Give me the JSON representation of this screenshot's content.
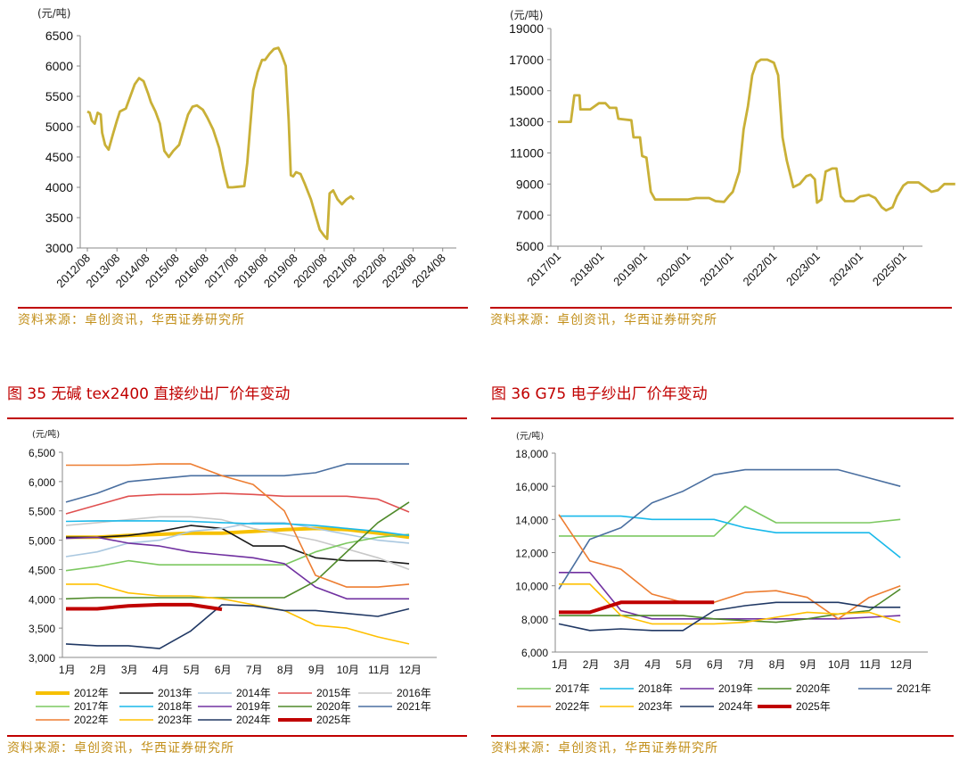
{
  "source_text": "资料来源：卓创资讯，华西证券研究所",
  "fig35_title": "图 35 无碱 tex2400 直接纱出厂价年变动",
  "fig36_title": "图 36 G75 电子纱出厂价年变动",
  "chart_data": [
    {
      "type": "line",
      "unit": "(元/吨)",
      "ylim": [
        3000,
        6500
      ],
      "yticks": [
        "3000",
        "3500",
        "4000",
        "4500",
        "5000",
        "5500",
        "6000",
        "6500"
      ],
      "xlabels": [
        "2012/08",
        "2013/08",
        "2014/08",
        "2015/08",
        "2016/08",
        "2017/08",
        "2018/08",
        "2019/08",
        "2020/08",
        "2021/08",
        "2022/08",
        "2023/08",
        "2024/08"
      ],
      "color": "#c9b037",
      "series": [
        {
          "points": [
            [
              0,
              5250
            ],
            [
              0.08,
              5230
            ],
            [
              0.15,
              5100
            ],
            [
              0.25,
              5050
            ],
            [
              0.35,
              5230
            ],
            [
              0.45,
              5200
            ],
            [
              0.5,
              4900
            ],
            [
              0.6,
              4700
            ],
            [
              0.72,
              4620
            ],
            [
              0.85,
              4850
            ],
            [
              1.0,
              5100
            ],
            [
              1.1,
              5250
            ],
            [
              1.3,
              5300
            ],
            [
              1.45,
              5500
            ],
            [
              1.6,
              5700
            ],
            [
              1.75,
              5800
            ],
            [
              1.9,
              5750
            ],
            [
              2.05,
              5550
            ],
            [
              2.15,
              5400
            ],
            [
              2.3,
              5250
            ],
            [
              2.45,
              5050
            ],
            [
              2.6,
              4600
            ],
            [
              2.75,
              4500
            ],
            [
              2.9,
              4600
            ],
            [
              3.1,
              4700
            ],
            [
              3.25,
              4950
            ],
            [
              3.4,
              5200
            ],
            [
              3.55,
              5330
            ],
            [
              3.7,
              5350
            ],
            [
              3.9,
              5280
            ],
            [
              4.05,
              5150
            ],
            [
              4.25,
              4950
            ],
            [
              4.45,
              4650
            ],
            [
              4.6,
              4300
            ],
            [
              4.75,
              4000
            ],
            [
              4.9,
              4000
            ],
            [
              5.1,
              4010
            ],
            [
              5.3,
              4020
            ],
            [
              5.4,
              4400
            ],
            [
              5.5,
              5000
            ],
            [
              5.6,
              5600
            ],
            [
              5.75,
              5900
            ],
            [
              5.9,
              6100
            ],
            [
              6.0,
              6100
            ],
            [
              6.15,
              6200
            ],
            [
              6.3,
              6280
            ],
            [
              6.45,
              6300
            ],
            [
              6.55,
              6200
            ],
            [
              6.7,
              6000
            ],
            [
              6.8,
              5100
            ],
            [
              6.87,
              4200
            ],
            [
              6.95,
              4180
            ],
            [
              7.05,
              4250
            ],
            [
              7.2,
              4220
            ],
            [
              7.35,
              4050
            ],
            [
              7.55,
              3800
            ],
            [
              7.7,
              3550
            ],
            [
              7.85,
              3300
            ],
            [
              8.0,
              3200
            ],
            [
              8.1,
              3150
            ],
            [
              8.18,
              3900
            ],
            [
              8.3,
              3950
            ],
            [
              8.45,
              3800
            ],
            [
              8.6,
              3720
            ],
            [
              8.75,
              3800
            ],
            [
              8.9,
              3850
            ],
            [
              9.0,
              3800
            ]
          ]
        }
      ]
    },
    {
      "type": "line",
      "unit": "(元/吨)",
      "ylim": [
        5000,
        19000
      ],
      "yticks": [
        "5000",
        "7000",
        "9000",
        "11000",
        "13000",
        "15000",
        "17000",
        "19000"
      ],
      "xlabels": [
        "2017/01",
        "2018/01",
        "2019/01",
        "2020/01",
        "2021/01",
        "2022/01",
        "2023/01",
        "2024/01",
        "2025/01"
      ],
      "color": "#c9b037",
      "series": [
        {
          "points": [
            [
              0,
              13000
            ],
            [
              0.3,
              13000
            ],
            [
              0.38,
              14700
            ],
            [
              0.5,
              14700
            ],
            [
              0.52,
              13800
            ],
            [
              0.75,
              13800
            ],
            [
              0.95,
              14200
            ],
            [
              1.1,
              14200
            ],
            [
              1.2,
              13900
            ],
            [
              1.35,
              13900
            ],
            [
              1.4,
              13200
            ],
            [
              1.7,
              13100
            ],
            [
              1.75,
              12000
            ],
            [
              1.9,
              12000
            ],
            [
              1.95,
              10800
            ],
            [
              2.05,
              10700
            ],
            [
              2.15,
              8500
            ],
            [
              2.25,
              8000
            ],
            [
              2.6,
              8000
            ],
            [
              3.0,
              8000
            ],
            [
              3.2,
              8100
            ],
            [
              3.5,
              8100
            ],
            [
              3.65,
              7900
            ],
            [
              3.85,
              7850
            ],
            [
              3.95,
              8200
            ],
            [
              4.05,
              8500
            ],
            [
              4.2,
              9800
            ],
            [
              4.3,
              12500
            ],
            [
              4.4,
              14000
            ],
            [
              4.5,
              16000
            ],
            [
              4.6,
              16800
            ],
            [
              4.7,
              17000
            ],
            [
              4.85,
              17000
            ],
            [
              5.0,
              16800
            ],
            [
              5.1,
              16000
            ],
            [
              5.2,
              12000
            ],
            [
              5.3,
              10500
            ],
            [
              5.45,
              8800
            ],
            [
              5.6,
              9000
            ],
            [
              5.75,
              9500
            ],
            [
              5.85,
              9600
            ],
            [
              5.95,
              9300
            ],
            [
              6.0,
              7800
            ],
            [
              6.1,
              8000
            ],
            [
              6.2,
              9800
            ],
            [
              6.35,
              10000
            ],
            [
              6.45,
              10000
            ],
            [
              6.55,
              8200
            ],
            [
              6.65,
              7900
            ],
            [
              6.85,
              7900
            ],
            [
              7.0,
              8200
            ],
            [
              7.2,
              8300
            ],
            [
              7.35,
              8100
            ],
            [
              7.5,
              7500
            ],
            [
              7.6,
              7300
            ],
            [
              7.75,
              7500
            ],
            [
              7.85,
              8200
            ],
            [
              8.0,
              8900
            ],
            [
              8.1,
              9100
            ],
            [
              8.35,
              9100
            ],
            [
              8.5,
              8800
            ],
            [
              8.65,
              8500
            ],
            [
              8.8,
              8600
            ],
            [
              8.95,
              9000
            ],
            [
              9.2,
              9000
            ]
          ]
        }
      ]
    },
    {
      "type": "line",
      "unit": "(元/吨)",
      "ylim": [
        3000,
        6500
      ],
      "yticks": [
        "3,000",
        "3,500",
        "4,000",
        "4,500",
        "5,000",
        "5,500",
        "6,000",
        "6,500"
      ],
      "xlabels": [
        "1月",
        "2月",
        "3月",
        "4月",
        "5月",
        "6月",
        "7月",
        "8月",
        "9月",
        "10月",
        "11月",
        "12月"
      ],
      "series": [
        {
          "name": "2012年",
          "color": "#f6c000",
          "width": 4,
          "values": [
            5050,
            5050,
            5080,
            5100,
            5120,
            5120,
            5150,
            5180,
            5200,
            5180,
            5120,
            5050
          ]
        },
        {
          "name": "2013年",
          "color": "#1a1a1a",
          "width": 1.6,
          "values": [
            5050,
            5050,
            5080,
            5150,
            5250,
            5200,
            4900,
            4900,
            4700,
            4650,
            4650,
            4600
          ]
        },
        {
          "name": "2014年",
          "color": "#aac8e0",
          "width": 1.6,
          "values": [
            4720,
            4800,
            4950,
            5000,
            5150,
            5200,
            5300,
            5300,
            5200,
            5100,
            5000,
            4950
          ]
        },
        {
          "name": "2015年",
          "color": "#e05050",
          "width": 1.6,
          "values": [
            5450,
            5600,
            5750,
            5780,
            5780,
            5800,
            5780,
            5750,
            5750,
            5750,
            5700,
            5480
          ]
        },
        {
          "name": "2016年",
          "color": "#c8c8c8",
          "width": 1.6,
          "values": [
            5250,
            5300,
            5350,
            5400,
            5400,
            5350,
            5200,
            5100,
            5000,
            4850,
            4700,
            4500
          ]
        },
        {
          "name": "2017年",
          "color": "#7cc860",
          "width": 1.6,
          "values": [
            4480,
            4550,
            4650,
            4580,
            4580,
            4580,
            4580,
            4580,
            4800,
            4950,
            5050,
            5100
          ]
        },
        {
          "name": "2018年",
          "color": "#19b9ea",
          "width": 1.6,
          "values": [
            5320,
            5330,
            5330,
            5330,
            5320,
            5300,
            5280,
            5280,
            5250,
            5200,
            5150,
            5080
          ]
        },
        {
          "name": "2019年",
          "color": "#7030a0",
          "width": 1.6,
          "values": [
            5030,
            5050,
            4950,
            4900,
            4800,
            4750,
            4700,
            4600,
            4200,
            4000,
            4000,
            4000
          ]
        },
        {
          "name": "2020年",
          "color": "#4f8a2a",
          "width": 1.6,
          "values": [
            4000,
            4020,
            4020,
            4020,
            4020,
            4020,
            4020,
            4020,
            4300,
            4800,
            5300,
            5650
          ]
        },
        {
          "name": "2021年",
          "color": "#4a6fa0",
          "width": 1.6,
          "values": [
            5650,
            5800,
            6000,
            6050,
            6100,
            6100,
            6100,
            6100,
            6150,
            6300,
            6300,
            6300
          ]
        },
        {
          "name": "2022年",
          "color": "#ed7d31",
          "width": 1.6,
          "values": [
            6280,
            6280,
            6280,
            6300,
            6300,
            6100,
            5950,
            5500,
            4400,
            4200,
            4200,
            4250
          ]
        },
        {
          "name": "2023年",
          "color": "#ffc000",
          "width": 1.6,
          "values": [
            4250,
            4250,
            4100,
            4050,
            4050,
            4000,
            3900,
            3800,
            3550,
            3500,
            3350,
            3230
          ]
        },
        {
          "name": "2024年",
          "color": "#203864",
          "width": 1.6,
          "values": [
            3230,
            3200,
            3200,
            3150,
            3450,
            3900,
            3880,
            3800,
            3800,
            3750,
            3700,
            3830
          ]
        },
        {
          "name": "2025年",
          "color": "#c00000",
          "width": 4,
          "values": [
            3830,
            3830,
            3880,
            3900,
            3900,
            3820
          ]
        }
      ]
    },
    {
      "type": "line",
      "unit": "(元/吨)",
      "ylim": [
        6000,
        18000
      ],
      "yticks": [
        "6,000",
        "8,000",
        "10,000",
        "12,000",
        "14,000",
        "16,000",
        "18,000"
      ],
      "xlabels": [
        "1月",
        "2月",
        "3月",
        "4月",
        "5月",
        "6月",
        "7月",
        "8月",
        "9月",
        "10月",
        "11月",
        "12月"
      ],
      "series": [
        {
          "name": "2017年",
          "color": "#7cc860",
          "width": 1.6,
          "values": [
            13000,
            13000,
            13000,
            13000,
            13000,
            13000,
            14800,
            13800,
            13800,
            13800,
            13800,
            14000
          ]
        },
        {
          "name": "2018年",
          "color": "#19b9ea",
          "width": 1.6,
          "values": [
            14200,
            14200,
            14200,
            14000,
            14000,
            14000,
            13500,
            13200,
            13200,
            13200,
            13200,
            11700
          ]
        },
        {
          "name": "2019年",
          "color": "#7030a0",
          "width": 1.6,
          "values": [
            10800,
            10800,
            8500,
            8000,
            8000,
            8000,
            8000,
            8000,
            8000,
            8000,
            8100,
            8200
          ]
        },
        {
          "name": "2020年",
          "color": "#4f8a2a",
          "width": 1.6,
          "values": [
            8200,
            8200,
            8200,
            8200,
            8200,
            8000,
            7900,
            7800,
            8000,
            8300,
            8500,
            9800
          ]
        },
        {
          "name": "2021年",
          "color": "#4a6fa0",
          "width": 1.6,
          "values": [
            9800,
            12800,
            13500,
            15000,
            15700,
            16700,
            17000,
            17000,
            17000,
            17000,
            16500,
            16000
          ]
        },
        {
          "name": "2022年",
          "color": "#ed7d31",
          "width": 1.6,
          "values": [
            14300,
            11500,
            11000,
            9500,
            9000,
            9000,
            9600,
            9700,
            9300,
            8000,
            9300,
            10000
          ]
        },
        {
          "name": "2023年",
          "color": "#ffc000",
          "width": 1.6,
          "values": [
            10100,
            10100,
            8200,
            7700,
            7700,
            7700,
            7800,
            8100,
            8400,
            8300,
            8400,
            7800
          ]
        },
        {
          "name": "2024年",
          "color": "#203864",
          "width": 1.6,
          "values": [
            7700,
            7300,
            7400,
            7300,
            7300,
            8500,
            8800,
            9000,
            9000,
            9000,
            8700,
            8700
          ]
        },
        {
          "name": "2025年",
          "color": "#c00000",
          "width": 4,
          "values": [
            8400,
            8400,
            9000,
            9000,
            9000,
            9000
          ]
        }
      ]
    }
  ]
}
